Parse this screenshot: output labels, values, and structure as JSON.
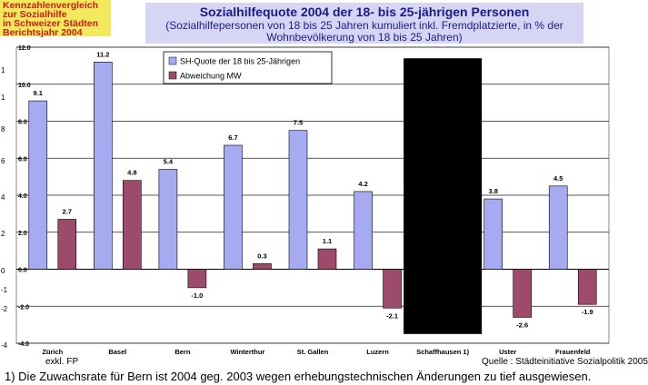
{
  "badge": {
    "lines": [
      "Kennzahlenvergleich",
      "zur Sozialhilfe",
      "in Schweizer Städten",
      "Berichtsjahr 2004"
    ]
  },
  "header": {
    "title": "Sozialhilfequote 2004 der 18- bis 25-jährigen Personen",
    "subtitle_line1": "(Sozialhilfepersonen von 18 bis 25 Jahren kumuliert inkl. Fremdplatzierte, in % der",
    "subtitle_line2": "Wohnbevölkerung von 18 bis 25 Jahren)"
  },
  "colors": {
    "series1": "#a6aaf0",
    "series2": "#9e4a6a",
    "blackbar": "#000000"
  },
  "chart_data": {
    "type": "bar",
    "categories": [
      "Zürich",
      "Basel",
      "Bern",
      "Winterthur",
      "St. Gallen",
      "Luzern",
      "Schaffhausen  1)",
      "Uster",
      "Frauenfeld"
    ],
    "series": [
      {
        "name": "SH-Quote der 18 bis 25-Jährigen",
        "values": [
          9.1,
          11.2,
          5.4,
          6.7,
          7.5,
          4.2,
          null,
          3.8,
          4.5
        ],
        "labels": [
          "9.1",
          "11.2",
          "5.4",
          "6.7",
          "7.5",
          "4.2",
          "",
          "3.8",
          "4.5"
        ]
      },
      {
        "name": "Abweichung MW",
        "values": [
          2.7,
          4.8,
          -1.0,
          0.3,
          1.1,
          -2.1,
          null,
          -2.6,
          -1.9
        ],
        "labels": [
          "2.7",
          "4.8",
          "-1.0",
          "0.3",
          "1.1",
          "-2.1",
          "",
          "-2.6",
          "-1.9"
        ]
      }
    ],
    "masked_category": {
      "index": 6,
      "ymin": -3.5,
      "ymax": 11.4
    },
    "ylim": [
      -4,
      12
    ],
    "yticks": [
      -4,
      -2,
      0,
      2,
      4,
      6,
      8,
      10,
      12
    ],
    "ytick_labels": [
      "-4.0",
      "-2.0",
      "0.0",
      "2.0",
      "4.0",
      "6.0",
      "8.0",
      "10.0",
      "12.0"
    ],
    "left_edge_labels": [
      "-4",
      "-2",
      "-1",
      "0",
      "2",
      "4",
      "6",
      "8",
      "1",
      "1"
    ],
    "legend": {
      "position": "top-left"
    }
  },
  "notes": {
    "exkl": "exkl. FP",
    "source": "Quelle : Städteinitiative Sozialpolitik 2005",
    "footnote": "1) Die Zuwachsrate für Bern ist 2004 geg. 2003 wegen erhebungstechnischen Änderungen zu tief ausgewiesen."
  }
}
